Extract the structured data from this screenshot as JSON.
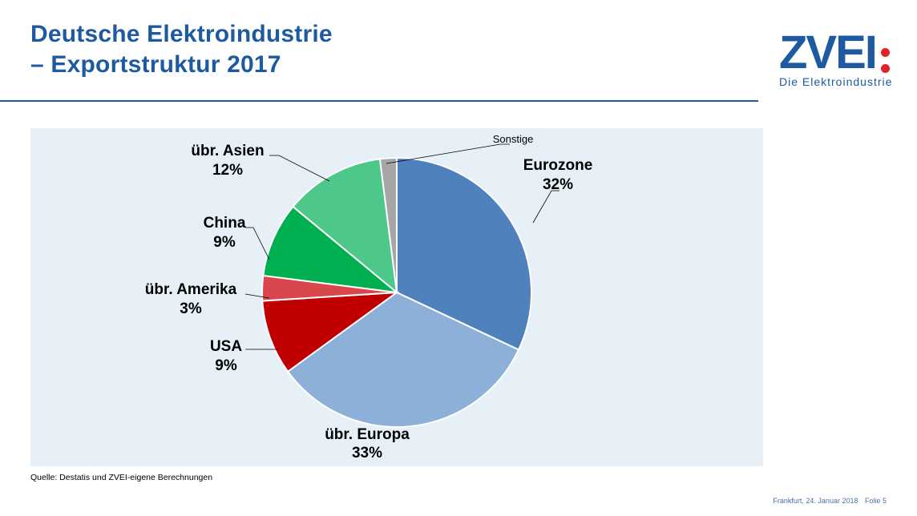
{
  "header": {
    "title_line1": "Deutsche Elektroindustrie",
    "title_line2": "– Exportstruktur 2017"
  },
  "logo": {
    "text": "ZVEI",
    "tagline": "Die Elektroindustrie",
    "dot_color": "#e0232b",
    "brand_color": "#1e5aa0"
  },
  "chart_data": {
    "type": "pie",
    "slices": [
      {
        "label": "Eurozone",
        "value": 32,
        "display": "32%",
        "color": "#4f81bd"
      },
      {
        "label": "übr. Europa",
        "value": 33,
        "display": "33%",
        "color": "#8db0d9"
      },
      {
        "label": "USA",
        "value": 9,
        "display": "9%",
        "color": "#c00000"
      },
      {
        "label": "übr. Amerika",
        "value": 3,
        "display": "3%",
        "color": "#d9474c"
      },
      {
        "label": "China",
        "value": 9,
        "display": "9%",
        "color": "#00b050"
      },
      {
        "label": "übr. Asien",
        "value": 12,
        "display": "12%",
        "color": "#4dc78a"
      },
      {
        "label": "Sonstige",
        "value": 2,
        "display": "",
        "color": "#a6a6a6"
      }
    ]
  },
  "source": "Quelle: Destatis und ZVEI-eigene Berechnungen",
  "footer": {
    "location_date": "Frankfurt,  24.  Januar 2018",
    "slide": "Folie 5"
  }
}
